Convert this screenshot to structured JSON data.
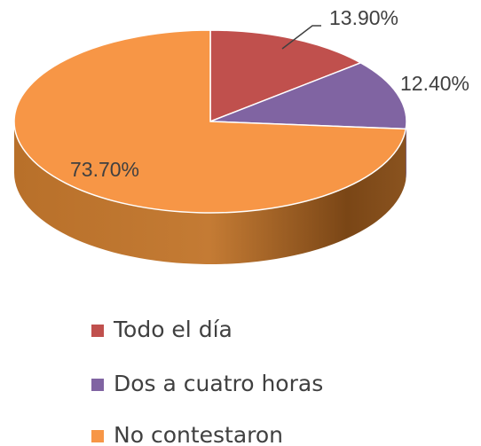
{
  "chart_data": {
    "type": "pie",
    "categories": [
      "Todo el día",
      "Dos a cuatro horas",
      "No contestaron"
    ],
    "values": [
      13.9,
      12.4,
      73.7
    ],
    "value_labels": [
      "13.90%",
      "12.40%",
      "73.70%"
    ],
    "colors": [
      "#c0504d",
      "#8064a2",
      "#f79646"
    ],
    "legend": "bottom"
  }
}
